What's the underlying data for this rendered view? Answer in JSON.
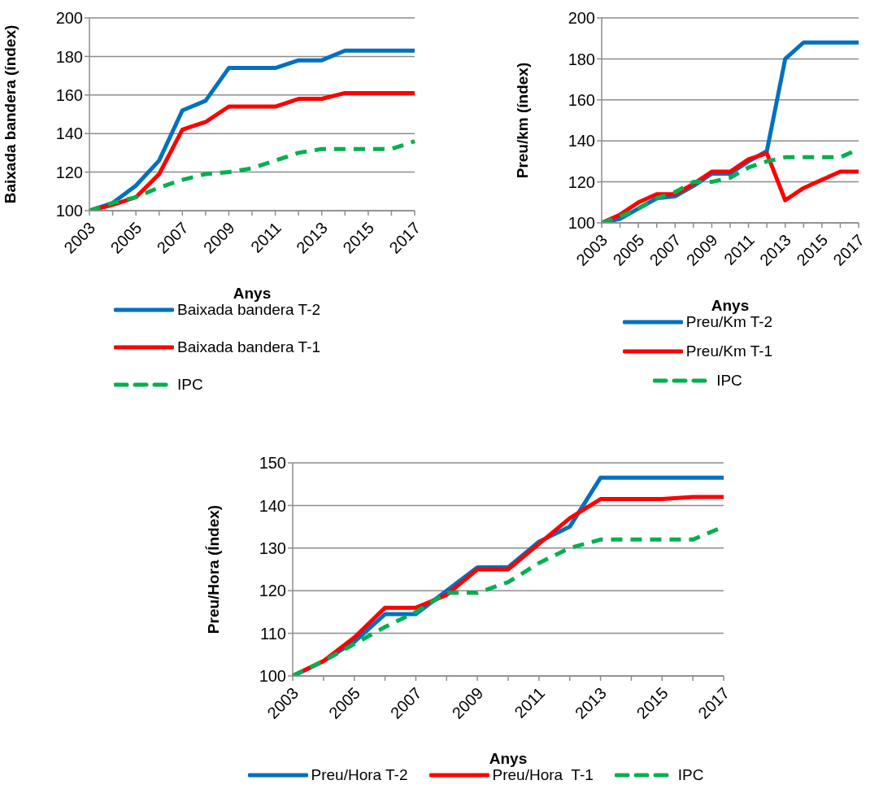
{
  "chart_data": [
    {
      "type": "line",
      "categories": [
        "2003",
        null,
        "2005",
        null,
        "2007",
        null,
        "2009",
        null,
        "2011",
        null,
        "2013",
        null,
        "2015",
        null,
        "2017"
      ],
      "xlabel": "Anys",
      "ylabel": "Baixada bandera (índex)",
      "ylim": [
        100,
        200
      ],
      "yticks": [
        100,
        120,
        140,
        160,
        180,
        200
      ],
      "grid": "y",
      "legend": "bottom left",
      "marker": "none",
      "series": [
        {
          "name": "Baixada bandera T-2",
          "color": "#0070c0",
          "line_style": "solid",
          "values": [
            100,
            104,
            113,
            126,
            152,
            157,
            174,
            174,
            174,
            178,
            178,
            183,
            183,
            183,
            183
          ]
        },
        {
          "name": "Baixada bandera T-1",
          "color": "#ff0000",
          "line_style": "solid",
          "values": [
            100,
            103,
            107,
            119,
            142,
            146,
            154,
            154,
            154,
            158,
            158,
            161,
            161,
            161,
            161
          ]
        },
        {
          "name": "IPC",
          "color": "#00b050",
          "line_style": "dashed",
          "values": [
            100,
            104,
            107,
            112,
            116,
            119,
            120,
            122,
            126,
            130,
            132,
            132,
            132,
            132,
            136
          ]
        }
      ]
    },
    {
      "type": "line",
      "categories": [
        "2003",
        null,
        "2005",
        null,
        "2007",
        null,
        "2009",
        null,
        "2011",
        null,
        "2013",
        null,
        "2015",
        null,
        "2017"
      ],
      "xlabel": "Anys",
      "ylabel": "Preu/km (índex)",
      "ylim": [
        100,
        200
      ],
      "yticks": [
        100,
        120,
        140,
        160,
        180,
        200
      ],
      "grid": "y",
      "legend": "bottom",
      "marker": "none",
      "series": [
        {
          "name": "Preu/Km T-2",
          "color": "#0070c0",
          "line_style": "solid",
          "values": [
            100,
            102,
            107,
            112,
            113,
            118,
            124,
            124,
            130,
            135,
            180,
            188,
            188,
            188,
            188
          ]
        },
        {
          "name": "Preu/Km T-1",
          "color": "#ff0000",
          "line_style": "solid",
          "values": [
            100,
            104,
            110,
            114,
            114,
            119,
            125,
            125,
            131,
            134,
            111,
            117,
            121,
            125,
            125
          ]
        },
        {
          "name": "IPC",
          "color": "#00b050",
          "line_style": "dashed",
          "values": [
            100,
            103,
            107,
            112,
            115,
            120,
            120,
            122,
            127,
            130,
            132,
            132,
            132,
            132,
            136
          ]
        }
      ]
    },
    {
      "type": "line",
      "categories": [
        "2003",
        null,
        "2005",
        null,
        "2007",
        null,
        "2009",
        null,
        "2011",
        null,
        "2013",
        null,
        "2015",
        null,
        "2017"
      ],
      "xlabel": "Anys",
      "ylabel": "Preu/Hora (Índex)",
      "ylim": [
        100,
        150
      ],
      "yticks": [
        100,
        110,
        120,
        130,
        140,
        150
      ],
      "grid": "y",
      "legend": "bottom",
      "marker": "none",
      "series": [
        {
          "name": "Preu/Hora T-2",
          "color": "#0070c0",
          "line_style": "solid",
          "values": [
            100,
            103.5,
            108,
            114.5,
            114.5,
            120,
            125.5,
            125.5,
            131.5,
            135,
            146.5,
            146.5,
            146.5,
            146.5,
            146.5
          ]
        },
        {
          "name": "Preu/Hora  T-1",
          "color": "#ff0000",
          "line_style": "solid",
          "values": [
            100,
            103.5,
            109,
            116,
            116,
            119,
            125,
            125,
            131,
            137,
            141.5,
            141.5,
            141.5,
            142,
            142
          ]
        },
        {
          "name": "IPC",
          "color": "#00b050",
          "line_style": "dashed",
          "values": [
            100,
            103.5,
            107.5,
            111.5,
            115,
            119.5,
            119.5,
            122,
            126.5,
            130,
            132,
            132,
            132,
            132,
            135
          ]
        }
      ]
    }
  ]
}
